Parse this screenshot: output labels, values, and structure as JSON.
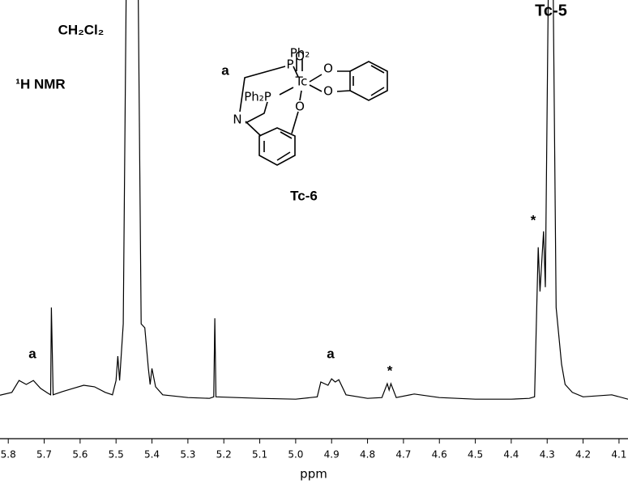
{
  "chart_data": {
    "type": "line",
    "x_label": "ppm",
    "color": "#000000",
    "x": [
      5.823,
      5.79,
      5.77,
      5.75,
      5.73,
      5.71,
      5.69,
      5.682,
      5.68,
      5.675,
      5.65,
      5.62,
      5.59,
      5.56,
      5.53,
      5.51,
      5.5,
      5.495,
      5.49,
      5.48,
      5.47,
      5.44,
      5.43,
      5.42,
      5.41,
      5.405,
      5.4,
      5.39,
      5.37,
      5.3,
      5.24,
      5.228,
      5.225,
      5.222,
      5.1,
      5.0,
      4.94,
      4.93,
      4.91,
      4.9,
      4.89,
      4.88,
      4.86,
      4.8,
      4.76,
      4.745,
      4.74,
      4.735,
      4.72,
      4.67,
      4.6,
      4.5,
      4.4,
      4.35,
      4.335,
      4.325,
      4.32,
      4.31,
      4.305,
      4.295,
      4.285,
      4.275,
      4.26,
      4.25,
      4.23,
      4.2,
      4.12,
      4.075
    ],
    "values": [
      0.9,
      1.6,
      4.6,
      3.6,
      4.6,
      2.6,
      1.4,
      1.0,
      22.9,
      1.0,
      1.8,
      2.6,
      3.4,
      3.0,
      1.6,
      1.0,
      4.6,
      10.7,
      4.6,
      18.8,
      120,
      120,
      18.8,
      17.8,
      7.6,
      3.6,
      7.6,
      3.0,
      1.0,
      0.3,
      0.1,
      0.5,
      20.2,
      0.5,
      0.1,
      -0.1,
      0.5,
      4.2,
      3.4,
      5.0,
      4.2,
      4.8,
      1.0,
      0.1,
      0.3,
      3.8,
      2.2,
      3.8,
      0.3,
      1.2,
      0.3,
      -0.1,
      -0.1,
      0.1,
      0.5,
      38,
      26.9,
      42,
      28,
      120,
      120,
      22.9,
      8.7,
      3.6,
      1.6,
      0.5,
      1.0,
      -0.1
    ],
    "xlim": [
      5.823,
      4.075
    ],
    "ylim": [
      -10,
      100
    ],
    "xticks": [
      5.8,
      5.7,
      5.6,
      5.5,
      5.4,
      5.3,
      5.2,
      5.1,
      {
        "value": 5,
        "label": "5.0"
      },
      4.9,
      4.8,
      4.7,
      4.6,
      4.5,
      4.4,
      4.3,
      4.2,
      4.1
    ],
    "annotations": [
      "Tc-5",
      "CH₂Cl₂",
      "¹H NMR",
      "a",
      "a",
      "*",
      "*",
      "Tc-6"
    ]
  },
  "structure": {
    "labels": [
      "Ph₂",
      "P",
      "O",
      "Tc",
      "O",
      "O",
      "Ph₂P",
      "O",
      "N",
      "a"
    ]
  }
}
